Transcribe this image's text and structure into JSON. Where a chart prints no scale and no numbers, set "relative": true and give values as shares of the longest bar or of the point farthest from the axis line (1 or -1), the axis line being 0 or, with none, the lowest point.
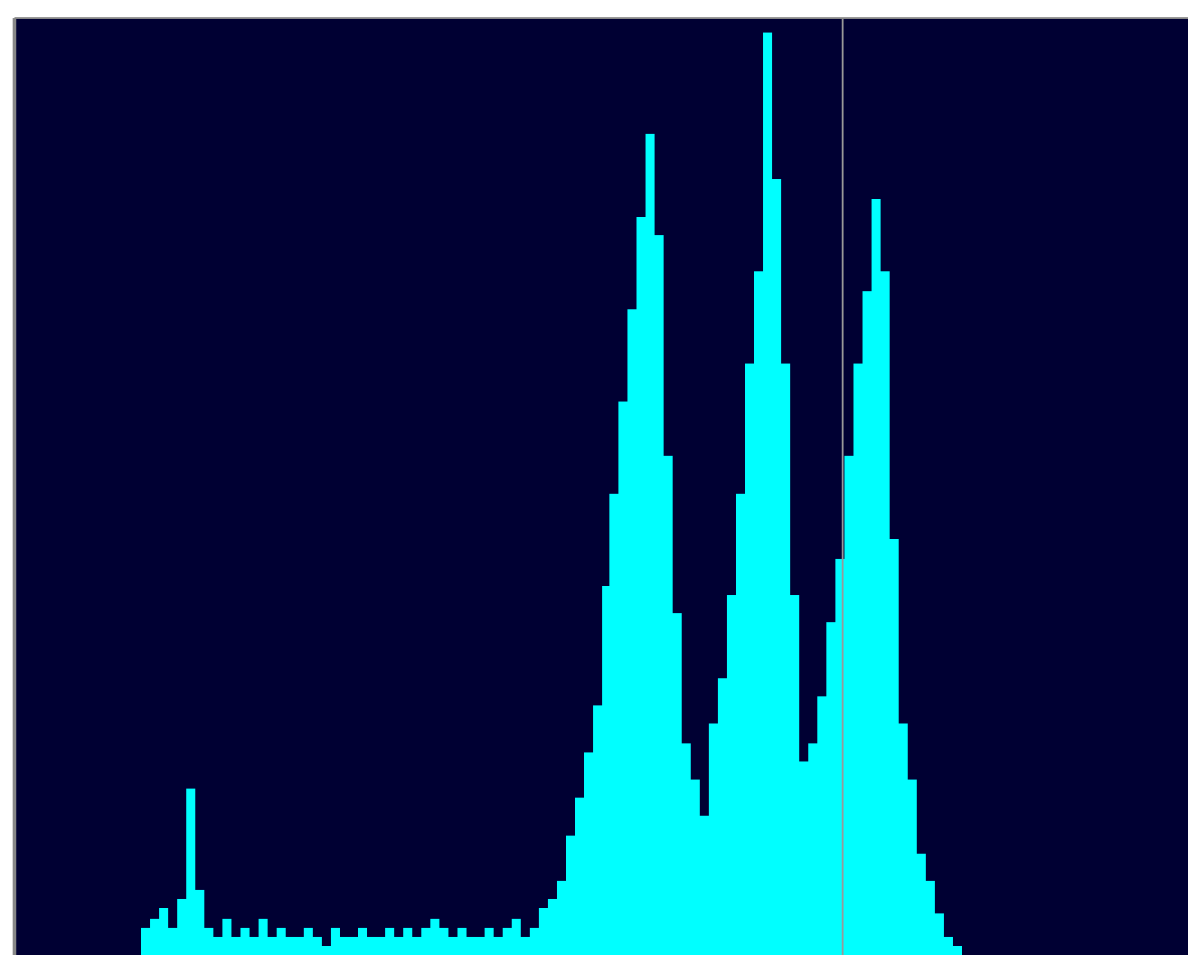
{
  "chart_data": {
    "type": "bar",
    "relative": true,
    "color": "#00ffff",
    "grid": false,
    "categories": [
      null,
      null,
      null,
      null,
      null,
      null,
      null,
      null,
      null,
      null,
      null,
      null,
      null,
      null,
      null,
      null,
      null,
      null,
      null,
      null,
      null,
      null,
      null,
      null,
      null,
      null,
      null,
      null,
      null,
      null,
      null,
      null,
      null,
      null,
      null,
      null,
      null,
      null,
      null,
      null,
      null,
      null,
      null,
      null,
      null,
      null,
      null,
      null,
      null,
      null,
      null,
      null,
      null,
      null,
      null,
      null,
      null,
      null,
      null,
      null,
      null,
      null,
      null,
      null,
      null,
      null,
      null,
      null,
      null,
      null,
      null,
      null,
      null,
      null,
      null,
      null,
      null,
      null,
      null,
      null,
      null,
      null,
      null,
      null,
      null,
      null,
      null,
      null,
      null,
      null,
      null
    ],
    "values": [
      0.03,
      0.04,
      0.05,
      0.03,
      0.06,
      0.18,
      0.07,
      0.03,
      0.02,
      0.04,
      0.02,
      0.03,
      0.02,
      0.04,
      0.02,
      0.03,
      0.02,
      0.02,
      0.03,
      0.02,
      0.01,
      0.03,
      0.02,
      0.02,
      0.03,
      0.02,
      0.02,
      0.03,
      0.02,
      0.03,
      0.02,
      0.03,
      0.04,
      0.03,
      0.02,
      0.03,
      0.02,
      0.02,
      0.03,
      0.02,
      0.03,
      0.04,
      0.02,
      0.03,
      0.05,
      0.06,
      0.08,
      0.13,
      0.17,
      0.22,
      0.27,
      0.4,
      0.5,
      0.6,
      0.7,
      0.8,
      0.89,
      0.78,
      0.54,
      0.37,
      0.23,
      0.19,
      0.15,
      0.25,
      0.3,
      0.39,
      0.5,
      0.64,
      0.74,
      1.0,
      0.84,
      0.64,
      0.39,
      0.21,
      0.23,
      0.28,
      0.36,
      0.43,
      0.54,
      0.64,
      0.72,
      0.82,
      0.74,
      0.45,
      0.25,
      0.19,
      0.11,
      0.08,
      0.045,
      0.02,
      0.01
    ]
  }
}
